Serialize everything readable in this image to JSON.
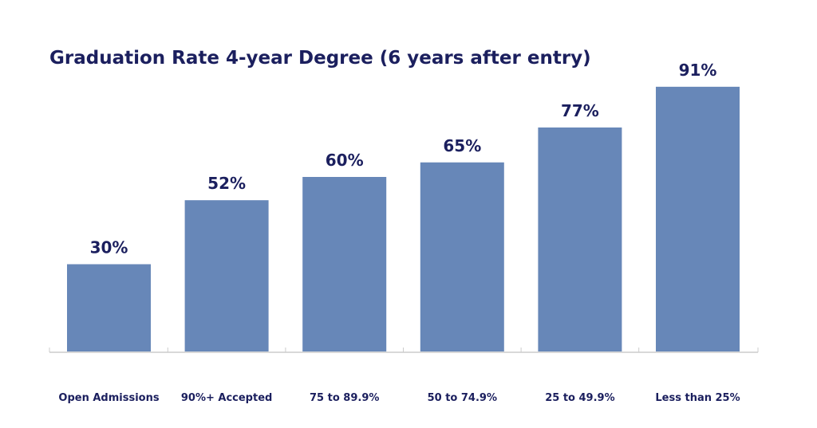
{
  "chart_data": {
    "type": "bar",
    "title": "Graduation Rate 4-year Degree (6 years after entry)",
    "categories": [
      "Open Admissions",
      "90%+ Accepted",
      "75 to 89.9%",
      "50 to 74.9%",
      "25 to 49.9%",
      "Less than 25%"
    ],
    "values": [
      30,
      52,
      60,
      65,
      77,
      91
    ],
    "data_labels": [
      "30%",
      "52%",
      "60%",
      "65%",
      "77%",
      "91%"
    ],
    "xlabel": "",
    "ylabel": "",
    "ylim": [
      0,
      100
    ],
    "grid": false,
    "legend": "none",
    "colors": {
      "bar": "#6787b8",
      "text": "#1b1f5e",
      "axis": "#cccccc"
    }
  }
}
